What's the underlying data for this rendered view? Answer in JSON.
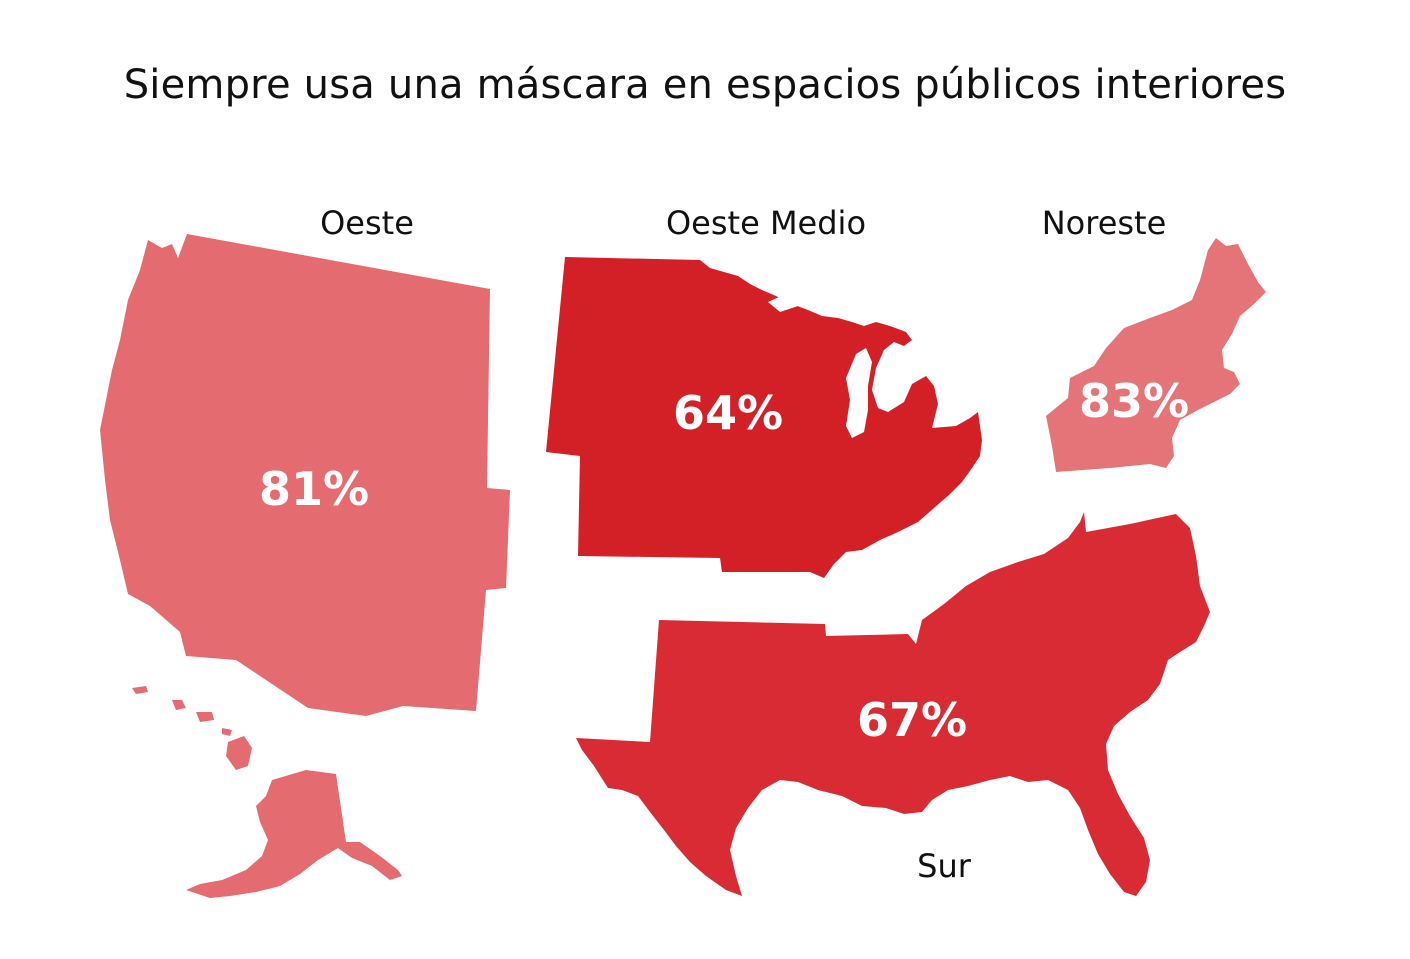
{
  "title": "Siempre usa una máscara en espacios públicos interiores",
  "regions": {
    "west": {
      "name": "Oeste",
      "value": "81%",
      "color": "#e46c70"
    },
    "midwest": {
      "name": "Oeste Medio",
      "value": "64%",
      "color": "#d32027"
    },
    "northeast": {
      "name": "Noreste",
      "value": "83%",
      "color": "#e47478"
    },
    "south": {
      "name": "Sur",
      "value": "67%",
      "color": "#d92b33"
    }
  },
  "chart_data": {
    "type": "map",
    "title": "Siempre usa una máscara en espacios públicos interiores",
    "categories": [
      "Oeste",
      "Oeste Medio",
      "Noreste",
      "Sur"
    ],
    "values": [
      81,
      64,
      83,
      67
    ],
    "unit": "%"
  }
}
